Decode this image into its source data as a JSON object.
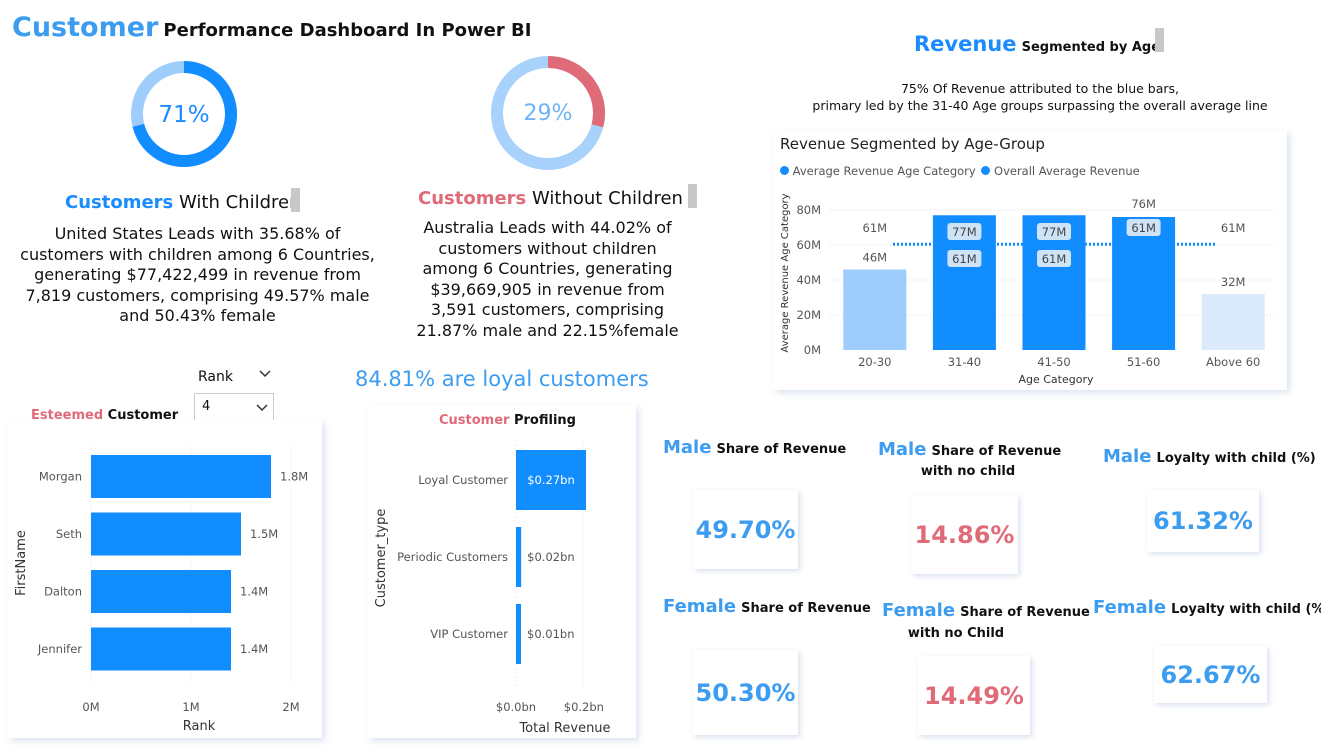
{
  "title": {
    "highlight": "Customer",
    "rest": "Performance Dashboard In Power BI"
  },
  "donut_with": {
    "percent_label": "71%",
    "fraction": 0.71,
    "heading_highlight": "Customers",
    "heading_rest": "With Children",
    "description": "United States Leads with 35.68% of customers with children among 6 Countries, generating $77,422,499 in revenue from 7,819 customers, comprising 49.57% male and 50.43% female"
  },
  "donut_without": {
    "percent_label": "29%",
    "fraction": 0.29,
    "heading_highlight": "Customers",
    "heading_rest": "Without Children",
    "description": "Australia Leads with 44.02% of customers without children among 6 Countries, generating $39,669,905 in revenue from 3,591 customers, comprising 21.87% male and 22.15%female"
  },
  "revenue_age": {
    "heading_highlight": "Revenue",
    "heading_rest": "Segmented by Age",
    "note_line1": "75% Of Revenue attributed to the blue bars,",
    "note_line2": "primary led by the 31-40 Age groups  surpassing the overall average line"
  },
  "loyal_text": "84.81% are loyal customers",
  "rank_filter": {
    "label": "Rank",
    "value": "4"
  },
  "esteemed": {
    "heading_highlight": "Esteemed",
    "heading_rest": "Customer"
  },
  "profiling": {
    "heading_highlight": "Customer",
    "heading_rest": "Profiling"
  },
  "chart_data": [
    {
      "type": "bar",
      "title": "Revenue Segmented by Age-Group",
      "legend": [
        "Average Revenue Age Category",
        "Overall Average Revenue"
      ],
      "legend_placement": "top-left",
      "categories": [
        "20-30",
        "31-40",
        "41-50",
        "51-60",
        "Above 60"
      ],
      "values": [
        46,
        77,
        77,
        76,
        32
      ],
      "value_labels": [
        "46M",
        "77M",
        "77M",
        "76M",
        "32M"
      ],
      "overall_average": 61,
      "overall_average_labels": [
        "61M",
        "61M",
        "61M",
        "61M",
        "61M"
      ],
      "bar_colors": [
        "#9fcdfb",
        "#118dff",
        "#118dff",
        "#118dff",
        "#dcebfc"
      ],
      "xlabel": "Age Category",
      "ylabel": "Average Revenue Age Category",
      "yticks": [
        "0M",
        "20M",
        "40M",
        "60M",
        "80M"
      ],
      "ylim": [
        0,
        80
      ],
      "grid": true
    },
    {
      "type": "bar",
      "orientation": "horizontal",
      "title": "Esteemed Customer",
      "categories": [
        "Morgan",
        "Seth",
        "Dalton",
        "Jennifer"
      ],
      "values": [
        1.8,
        1.5,
        1.4,
        1.4
      ],
      "value_labels": [
        "1.8M",
        "1.5M",
        "1.4M",
        "1.4M"
      ],
      "xlabel": "Rank",
      "ylabel": "FirstName",
      "xticks": [
        "0M",
        "1M",
        "2M"
      ],
      "xlim": [
        0,
        2
      ]
    },
    {
      "type": "bar",
      "orientation": "horizontal",
      "title": "Customer Profiling",
      "categories": [
        "Loyal Customer",
        "Periodic Customers",
        "VIP Customer"
      ],
      "values": [
        0.27,
        0.02,
        0.01
      ],
      "value_labels": [
        "$0.27bn",
        "$0.02bn",
        "$0.01bn"
      ],
      "xlabel": "Total Revenue",
      "ylabel": "Customer_type",
      "xticks": [
        "$0.0bn",
        "$0.2bn"
      ],
      "xlim": [
        0,
        0.3
      ]
    }
  ],
  "kpis": [
    {
      "highlight": "Male",
      "label": "Share of Revenue",
      "value": "49.70%",
      "color": "#3c9cf0"
    },
    {
      "highlight": "Male",
      "label": "Share of Revenue",
      "label2": "with no child",
      "value": "14.86%",
      "color": "#e06b78"
    },
    {
      "highlight": "Male",
      "label": "Loyalty with child (%)",
      "value": "61.32%",
      "color": "#3c9cf0"
    },
    {
      "highlight": "Female",
      "label": "Share of Revenue",
      "value": "50.30%",
      "color": "#3c9cf0"
    },
    {
      "highlight": "Female",
      "label": "Share of Revenue",
      "label2": "with no Child",
      "value": "14.49%",
      "color": "#e06b78"
    },
    {
      "highlight": "Female",
      "label": "Loyalty with child (%)",
      "value": "62.67%",
      "color": "#3c9cf0"
    }
  ],
  "colors": {
    "accent": "#1a8cff",
    "red": "#e06b78",
    "bar": "#118dff"
  }
}
